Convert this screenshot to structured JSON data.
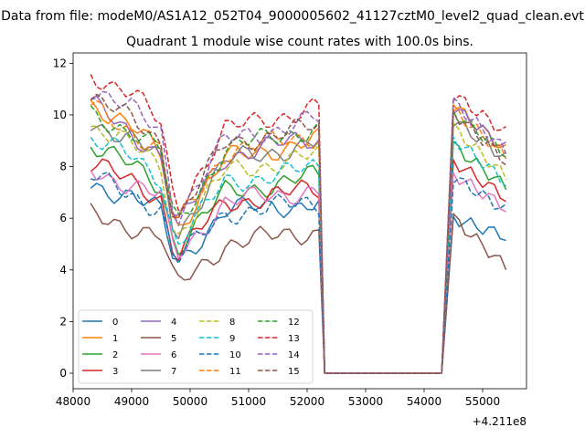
{
  "chart_data": {
    "type": "line",
    "suptitle": "Data from file: modeM0/AS1A12_052T04_9000005602_41127cztM0_level2_quad_clean.evt",
    "title": "Quadrant 1 module wise count rates with 100.0s bins.",
    "xlabel": "",
    "ylabel": "",
    "x_offset_label": "+4.211e8",
    "x_range": [
      48000,
      55750
    ],
    "y_range": [
      -0.6,
      12.4
    ],
    "x_ticks": [
      48000,
      49000,
      50000,
      51000,
      52000,
      53000,
      54000,
      55000
    ],
    "x_tick_labels": [
      "48000",
      "49000",
      "50000",
      "51000",
      "52000",
      "53000",
      "54000",
      "55000"
    ],
    "y_ticks": [
      0,
      2,
      4,
      6,
      8,
      10,
      12
    ],
    "y_tick_labels": [
      "0",
      "2",
      "4",
      "6",
      "8",
      "10",
      "12"
    ],
    "grid": false,
    "legend_placement": "lower-left",
    "legend_columns": 4,
    "gap_interval": [
      52400,
      54300
    ],
    "segments": [
      {
        "x_start": 48300,
        "x_end": 52200
      },
      {
        "x_start": 54500,
        "x_end": 55400
      }
    ],
    "series_levels": [
      {
        "name": "0",
        "style": "solid",
        "color": "#1f77b4",
        "pre": [
          7.3,
          6.9,
          6.2,
          4.2,
          6.3,
          6.6
        ],
        "post": [
          6.0,
          5.3
        ]
      },
      {
        "name": "1",
        "style": "solid",
        "color": "#ff7f0e",
        "pre": [
          10.5,
          9.5,
          8.5,
          5.5,
          8.3,
          9.0
        ],
        "post": [
          10.4,
          8.6
        ]
      },
      {
        "name": "2",
        "style": "solid",
        "color": "#2ca02c",
        "pre": [
          8.9,
          8.0,
          7.2,
          4.8,
          7.0,
          7.6
        ],
        "post": [
          8.8,
          7.2
        ]
      },
      {
        "name": "3",
        "style": "solid",
        "color": "#d62728",
        "pre": [
          8.1,
          7.4,
          6.8,
          4.5,
          6.6,
          7.1
        ],
        "post": [
          8.2,
          6.8
        ]
      },
      {
        "name": "4",
        "style": "solid",
        "color": "#9467bd",
        "pre": [
          10.4,
          9.3,
          8.5,
          5.6,
          8.4,
          9.1
        ],
        "post": [
          10.3,
          8.7
        ]
      },
      {
        "name": "5",
        "style": "solid",
        "color": "#8c564b",
        "pre": [
          6.1,
          5.7,
          5.3,
          3.3,
          5.0,
          5.5
        ],
        "post": [
          6.0,
          4.1
        ]
      },
      {
        "name": "6",
        "style": "solid",
        "color": "#e377c2",
        "pre": [
          7.9,
          7.3,
          6.8,
          4.5,
          6.6,
          7.1
        ],
        "post": [
          7.7,
          6.4
        ]
      },
      {
        "name": "7",
        "style": "solid",
        "color": "#7f7f7f",
        "pre": [
          9.8,
          9.0,
          8.3,
          5.3,
          8.2,
          8.9
        ],
        "post": [
          9.8,
          8.3
        ]
      },
      {
        "name": "8",
        "style": "dashed",
        "color": "#bcbd22",
        "pre": [
          9.6,
          8.8,
          8.0,
          5.2,
          7.8,
          8.4
        ],
        "post": [
          9.5,
          7.6
        ]
      },
      {
        "name": "9",
        "style": "dashed",
        "color": "#17becf",
        "pre": [
          9.0,
          8.4,
          7.6,
          4.9,
          7.4,
          7.9
        ],
        "post": [
          9.1,
          7.4
        ]
      },
      {
        "name": "10",
        "style": "dashed",
        "color": "#1f77b4",
        "pre": [
          7.6,
          6.9,
          6.4,
          4.3,
          6.2,
          6.6
        ],
        "post": [
          7.6,
          6.3
        ]
      },
      {
        "name": "11",
        "style": "dashed",
        "color": "#ff7f0e",
        "pre": [
          10.3,
          9.4,
          8.6,
          5.6,
          8.6,
          9.2
        ],
        "post": [
          10.2,
          8.4
        ]
      },
      {
        "name": "12",
        "style": "dashed",
        "color": "#2ca02c",
        "pre": [
          10.0,
          9.4,
          8.6,
          5.6,
          8.7,
          9.5
        ],
        "post": [
          10.1,
          8.5
        ]
      },
      {
        "name": "13",
        "style": "dashed",
        "color": "#d62728",
        "pre": [
          11.6,
          10.9,
          9.6,
          6.3,
          9.4,
          10.3
        ],
        "post": [
          10.8,
          9.3
        ]
      },
      {
        "name": "14",
        "style": "dashed",
        "color": "#9467bd",
        "pre": [
          11.1,
          10.2,
          9.3,
          6.0,
          9.0,
          9.8
        ],
        "post": [
          10.5,
          8.6
        ]
      },
      {
        "name": "15",
        "style": "dashed",
        "color": "#8c564b",
        "pre": [
          10.7,
          9.8,
          9.0,
          5.8,
          8.9,
          9.5
        ],
        "post": [
          10.1,
          8.2
        ]
      }
    ]
  }
}
